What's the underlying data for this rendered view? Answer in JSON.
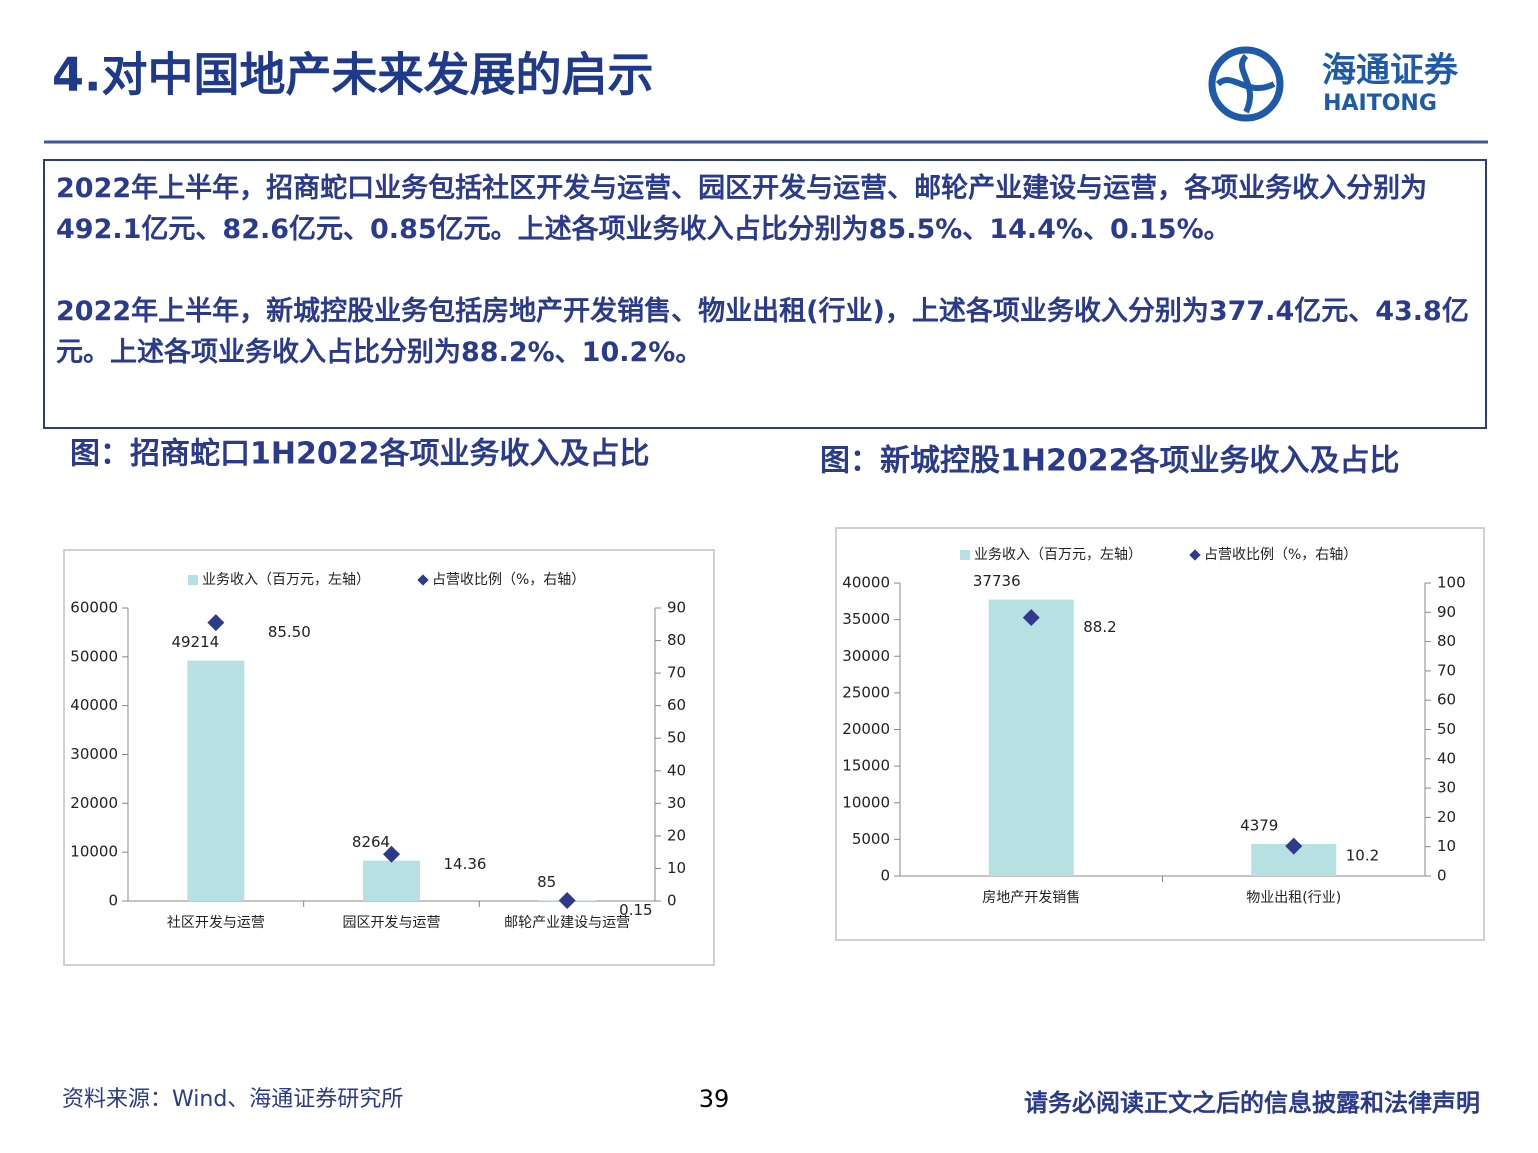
{
  "header": {
    "title": "4.对中国地产未来发展的启示",
    "logo_text": "海通证券",
    "logo_sub": "HAITONG"
  },
  "textbox": {
    "paragraphs": [
      "2022年上半年，招商蛇口业务包括社区开发与运营、园区开发与运营、邮轮产业建设与运营，各项业务收入分别为492.1亿元、82.6亿元、0.85亿元。上述各项业务收入占比分别为85.5%、14.4%、0.15%。",
      "2022年上半年，新城控股业务包括房地产开发销售、物业出租(行业)，上述各项业务收入分别为377.4亿元、43.8亿元。上述各项业务收入占比分别为88.2%、10.2%。"
    ]
  },
  "chart_data": [
    {
      "type": "bar",
      "title": "图：招商蛇口1H2022各项业务收入及占比",
      "categories": [
        "社区开发与运营",
        "园区开发与运营",
        "邮轮产业建设与运营"
      ],
      "series": [
        {
          "name": "业务收入（百万元，左轴）",
          "type": "bar",
          "color": "#b7e0e3",
          "values": [
            49214,
            8264,
            85
          ]
        },
        {
          "name": "占营收比例（%，右轴）",
          "type": "scatter",
          "axis": "y2",
          "color": "#2e3a8c",
          "values": [
            85.5,
            14.36,
            0.15
          ],
          "value_labels": [
            "85.50",
            "14.36",
            "0.15"
          ]
        }
      ],
      "ylim": [
        0,
        60000
      ],
      "yticks": [
        0,
        10000,
        20000,
        30000,
        40000,
        50000,
        60000
      ],
      "y2lim": [
        0,
        90
      ],
      "y2ticks": [
        0,
        10,
        20,
        30,
        40,
        50,
        60,
        70,
        80,
        90
      ],
      "legend": "top",
      "grid": false
    },
    {
      "type": "bar",
      "title": "图：新城控股1H2022各项业务收入及占比",
      "categories": [
        "房地产开发销售",
        "物业出租(行业)"
      ],
      "series": [
        {
          "name": "业务收入（百万元，左轴）",
          "type": "bar",
          "color": "#b7e0e3",
          "values": [
            37736,
            4379
          ]
        },
        {
          "name": "占营收比例（%，右轴）",
          "type": "scatter",
          "axis": "y2",
          "color": "#2e3a8c",
          "values": [
            88.2,
            10.2
          ]
        }
      ],
      "ylim": [
        0,
        40000
      ],
      "yticks": [
        0,
        5000,
        10000,
        15000,
        20000,
        25000,
        30000,
        35000,
        40000
      ],
      "y2lim": [
        0,
        100
      ],
      "y2ticks": [
        0,
        10,
        20,
        30,
        40,
        50,
        60,
        70,
        80,
        90,
        100
      ],
      "legend": "top",
      "grid": false
    }
  ],
  "footer": {
    "source": "资料来源：Wind、海通证券研究所",
    "page": "39",
    "disclaimer": "请务必阅读正文之后的信息披露和法律声明"
  }
}
